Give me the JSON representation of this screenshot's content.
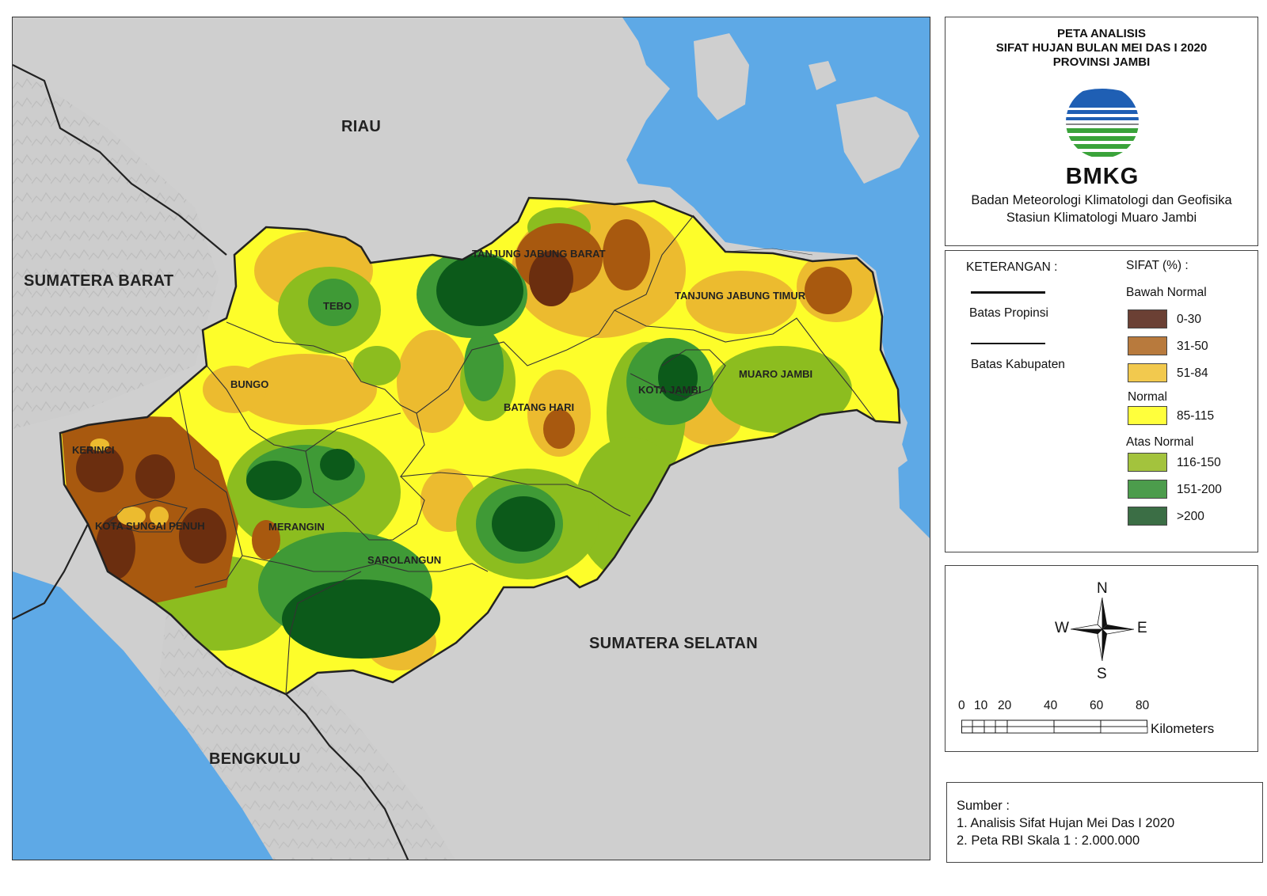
{
  "map": {
    "neighbors": {
      "riau": "RIAU",
      "sumatera_barat": "SUMATERA BARAT",
      "sumatera_selatan": "SUMATERA SELATAN",
      "bengkulu": "BENGKULU"
    },
    "regencies": {
      "tanjung_jabung_barat": "TANJUNG JABUNG BARAT",
      "tanjung_jabung_timur": "TANJUNG JABUNG TIMUR",
      "tebo": "TEBO",
      "bungo": "BUNGO",
      "batang_hari": "BATANG HARI",
      "kota_jambi": "KOTA JAMBI",
      "muaro_jambi": "MUARO JAMBI",
      "kerinci": "KERINCI",
      "kota_sungai_penuh": "KOTA SUNGAI PENUH",
      "merangin": "MERANGIN",
      "sarolangun": "SAROLANGUN"
    },
    "colors": {
      "land": "#cfcfcf",
      "sea": "#5ea9e6",
      "class_0_30": "#6b2e0f",
      "class_31_50": "#a8590f",
      "class_51_84": "#ecbb2f",
      "class_85_115": "#fdfd2a",
      "class_116_150": "#8cbd1f",
      "class_151_200": "#3f9a36",
      "class_gt_200": "#0c5a1a"
    }
  },
  "title": {
    "line1": "PETA ANALISIS",
    "line2": "SIFAT HUJAN BULAN MEI DAS I 2020",
    "line3": "PROVINSI JAMBI",
    "logo_text": "BMKG",
    "agency_line1": "Badan Meteorologi Klimatologi dan Geofisika",
    "agency_line2": "Stasiun Klimatologi Muaro Jambi"
  },
  "legend": {
    "keterangan": "KETERANGAN :",
    "sifat_header": "SIFAT (%) :",
    "batas_propinsi": "Batas Propinsi",
    "batas_kabupaten": "Batas Kabupaten",
    "groups": {
      "bawah_normal": "Bawah Normal",
      "normal": "Normal",
      "atas_normal": "Atas Normal"
    },
    "classes": [
      {
        "label": "0-30",
        "color": "#6b4034"
      },
      {
        "label": "31-50",
        "color": "#b87a3d"
      },
      {
        "label": "51-84",
        "color": "#f2c94e"
      },
      {
        "label": "85-115",
        "color": "#ffff3c"
      },
      {
        "label": "116-150",
        "color": "#a3c33d"
      },
      {
        "label": "151-200",
        "color": "#4c9c4c"
      },
      {
        "label": ">200",
        "color": "#3b6e45"
      }
    ]
  },
  "compass": {
    "n": "N",
    "s": "S",
    "e": "E",
    "w": "W"
  },
  "scale": {
    "ticks": [
      "0",
      "10",
      "20",
      "40",
      "60",
      "80"
    ],
    "unit": "Kilometers"
  },
  "source": {
    "heading": "Sumber :",
    "item1": "1. Analisis Sifat Hujan Mei Das I 2020",
    "item2": "2. Peta RBI Skala 1 : 2.000.000"
  }
}
